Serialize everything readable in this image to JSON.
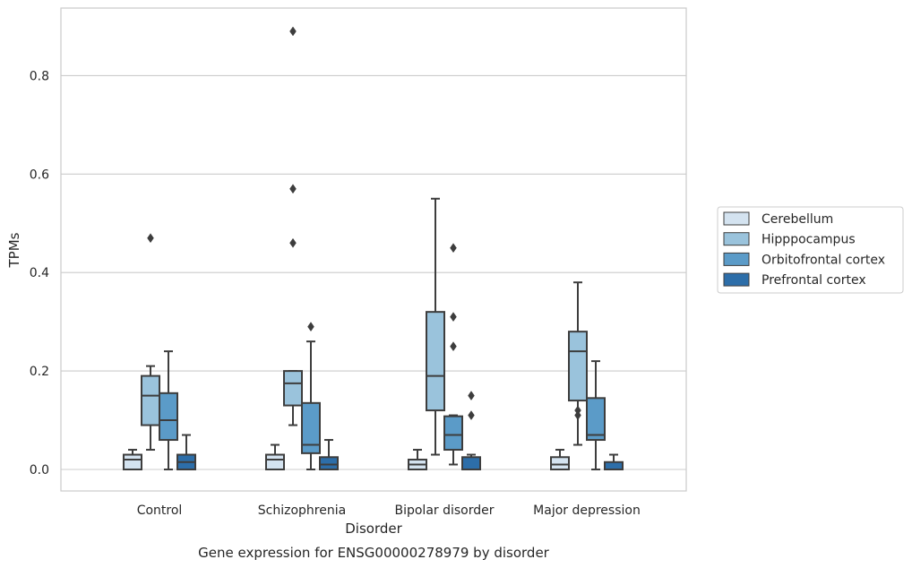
{
  "chart_data": {
    "type": "box",
    "title": "",
    "caption": "Gene expression for ENSG00000278979 by disorder",
    "xlabel": "Disorder",
    "ylabel": "TPMs",
    "ylim": [
      -0.043,
      0.935
    ],
    "yticks": [
      "0.0",
      "0.2",
      "0.4",
      "0.6",
      "0.8"
    ],
    "ytick_values": [
      0.0,
      0.2,
      0.4,
      0.6,
      0.8
    ],
    "grid": "horizontal",
    "legend_position": "outside-right",
    "categories": [
      "Control",
      "Schizophrenia",
      "Bipolar disorder",
      "Major depression"
    ],
    "series": [
      {
        "name": "Cerebellum",
        "color": "#d4e3f0",
        "boxes": [
          {
            "whislo": 0.0,
            "q1": 0.0,
            "med": 0.02,
            "q3": 0.03,
            "whishi": 0.04,
            "fliers": []
          },
          {
            "whislo": 0.0,
            "q1": 0.0,
            "med": 0.02,
            "q3": 0.03,
            "whishi": 0.05,
            "fliers": []
          },
          {
            "whislo": 0.0,
            "q1": 0.0,
            "med": 0.01,
            "q3": 0.02,
            "whishi": 0.04,
            "fliers": []
          },
          {
            "whislo": 0.0,
            "q1": 0.0,
            "med": 0.01,
            "q3": 0.025,
            "whishi": 0.04,
            "fliers": []
          }
        ]
      },
      {
        "name": "Hipppocampus",
        "color": "#9ac3dc",
        "boxes": [
          {
            "whislo": 0.04,
            "q1": 0.09,
            "med": 0.15,
            "q3": 0.19,
            "whishi": 0.21,
            "fliers": [
              0.47
            ]
          },
          {
            "whislo": 0.09,
            "q1": 0.13,
            "med": 0.175,
            "q3": 0.2,
            "whishi": 0.2,
            "fliers": [
              0.46,
              0.57,
              0.89
            ]
          },
          {
            "whislo": 0.03,
            "q1": 0.12,
            "med": 0.19,
            "q3": 0.32,
            "whishi": 0.55,
            "fliers": []
          },
          {
            "whislo": 0.05,
            "q1": 0.14,
            "med": 0.24,
            "q3": 0.28,
            "whishi": 0.38,
            "fliers": [
              0.11,
              0.12
            ]
          }
        ]
      },
      {
        "name": "Orbitofrontal cortex",
        "color": "#5b9bc8",
        "boxes": [
          {
            "whislo": 0.0,
            "q1": 0.06,
            "med": 0.1,
            "q3": 0.155,
            "whishi": 0.24,
            "fliers": []
          },
          {
            "whislo": 0.0,
            "q1": 0.033,
            "med": 0.05,
            "q3": 0.135,
            "whishi": 0.26,
            "fliers": [
              0.29
            ]
          },
          {
            "whislo": 0.01,
            "q1": 0.04,
            "med": 0.07,
            "q3": 0.108,
            "whishi": 0.11,
            "fliers": [
              0.25,
              0.31,
              0.45
            ]
          },
          {
            "whislo": 0.0,
            "q1": 0.06,
            "med": 0.07,
            "q3": 0.145,
            "whishi": 0.22,
            "fliers": []
          }
        ]
      },
      {
        "name": "Prefrontal cortex",
        "color": "#2d6ea9",
        "boxes": [
          {
            "whislo": 0.0,
            "q1": 0.0,
            "med": 0.015,
            "q3": 0.03,
            "whishi": 0.07,
            "fliers": []
          },
          {
            "whislo": 0.0,
            "q1": 0.0,
            "med": 0.01,
            "q3": 0.025,
            "whishi": 0.06,
            "fliers": []
          },
          {
            "whislo": 0.0,
            "q1": 0.0,
            "med": 0.0,
            "q3": 0.025,
            "whishi": 0.03,
            "fliers": [
              0.11,
              0.15
            ]
          },
          {
            "whislo": 0.0,
            "q1": 0.0,
            "med": 0.0,
            "q3": 0.015,
            "whishi": 0.03,
            "fliers": []
          }
        ]
      }
    ]
  }
}
